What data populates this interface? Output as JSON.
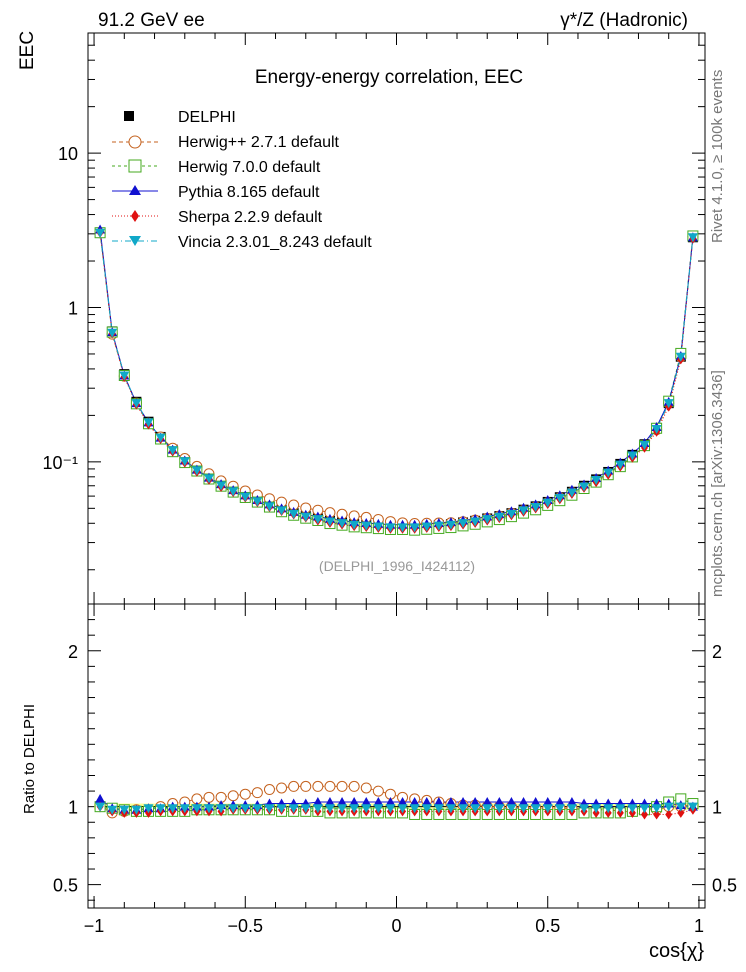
{
  "header": {
    "left": "91.2 GeV ee",
    "right": "γ*/Z (Hadronic)"
  },
  "side_text": {
    "rivet": "Rivet 4.1.0, ≥ 100k events",
    "mcplots": "mcplots.cern.ch [arXiv:1306.3436]"
  },
  "analysis_id": "(DELPHI_1996_I424112)",
  "chart_data": {
    "type": "line",
    "title": "Energy-energy correlation, EEC",
    "xlabel": "cos{χ}",
    "ylabel": "EEC",
    "ratio_ylabel": "Ratio to DELPHI",
    "xlim": [
      -1.02,
      1.02
    ],
    "ylim": [
      0.012,
      60
    ],
    "ratio_ylim": [
      0.35,
      2.3
    ],
    "yscale": "log",
    "x_ticks": [
      -1,
      -0.5,
      0,
      0.5,
      1
    ],
    "x_tick_labels": [
      "−1",
      "−0.5",
      "0",
      "0.5",
      "1"
    ],
    "y_ticks": [
      0.1,
      1,
      10
    ],
    "y_tick_labels": [
      "10⁻¹",
      "1",
      "10"
    ],
    "ratio_ticks": [
      0.5,
      1,
      2
    ],
    "ratio_tick_labels": [
      "0.5",
      "1",
      "2"
    ],
    "x": [
      -0.98,
      -0.94,
      -0.9,
      -0.86,
      -0.82,
      -0.78,
      -0.74,
      -0.7,
      -0.66,
      -0.62,
      -0.58,
      -0.54,
      -0.5,
      -0.46,
      -0.42,
      -0.38,
      -0.34,
      -0.3,
      -0.26,
      -0.22,
      -0.18,
      -0.14,
      -0.1,
      -0.06,
      -0.02,
      0.02,
      0.06,
      0.1,
      0.14,
      0.18,
      0.22,
      0.26,
      0.3,
      0.34,
      0.38,
      0.42,
      0.46,
      0.5,
      0.54,
      0.58,
      0.62,
      0.66,
      0.7,
      0.74,
      0.78,
      0.82,
      0.86,
      0.9,
      0.94,
      0.98
    ],
    "data": {
      "name": "DELPHI",
      "values": [
        3.05,
        0.7,
        0.37,
        0.245,
        0.182,
        0.145,
        0.12,
        0.102,
        0.089,
        0.079,
        0.071,
        0.065,
        0.06,
        0.056,
        0.052,
        0.049,
        0.0465,
        0.0445,
        0.043,
        0.0415,
        0.0405,
        0.0395,
        0.039,
        0.0385,
        0.038,
        0.038,
        0.038,
        0.0385,
        0.039,
        0.0395,
        0.0405,
        0.0415,
        0.043,
        0.0445,
        0.0465,
        0.049,
        0.0515,
        0.055,
        0.059,
        0.064,
        0.07,
        0.077,
        0.086,
        0.097,
        0.111,
        0.13,
        0.165,
        0.24,
        0.48,
        2.85
      ]
    },
    "series": [
      {
        "name": "Herwig++ 2.7.1 default",
        "color": "#c4621f",
        "marker": "circle-open",
        "dash": "4,3",
        "ratio": [
          1.0,
          0.96,
          0.97,
          0.98,
          0.98,
          1.0,
          1.02,
          1.03,
          1.05,
          1.06,
          1.06,
          1.07,
          1.08,
          1.09,
          1.11,
          1.12,
          1.13,
          1.13,
          1.13,
          1.13,
          1.13,
          1.13,
          1.12,
          1.1,
          1.08,
          1.06,
          1.05,
          1.04,
          1.03,
          1.02,
          1.01,
          1.01,
          1.0,
          1.0,
          1.0,
          0.99,
          0.99,
          0.99,
          0.99,
          0.99,
          0.98,
          0.98,
          0.98,
          0.97,
          0.97,
          0.98,
          0.98,
          1.0,
          1.0,
          1.01
        ]
      },
      {
        "name": "Herwig 7.0.0 default",
        "color": "#44aa1f",
        "marker": "square-open",
        "dash": "3,3",
        "ratio": [
          1.0,
          0.99,
          0.98,
          0.97,
          0.97,
          0.97,
          0.97,
          0.97,
          0.98,
          0.98,
          0.98,
          0.98,
          0.98,
          0.98,
          0.98,
          0.97,
          0.97,
          0.97,
          0.97,
          0.96,
          0.96,
          0.96,
          0.96,
          0.96,
          0.96,
          0.96,
          0.95,
          0.95,
          0.95,
          0.95,
          0.95,
          0.95,
          0.95,
          0.95,
          0.95,
          0.95,
          0.95,
          0.95,
          0.95,
          0.95,
          0.96,
          0.96,
          0.96,
          0.96,
          0.97,
          0.98,
          1.0,
          1.03,
          1.05,
          1.02
        ]
      },
      {
        "name": "Pythia 8.165 default",
        "color": "#1010d0",
        "marker": "triangle-up",
        "dash": "",
        "ratio": [
          1.05,
          0.99,
          0.98,
          0.98,
          0.99,
          0.99,
          1.0,
          1.0,
          1.0,
          1.0,
          1.01,
          1.01,
          1.01,
          1.01,
          1.02,
          1.02,
          1.02,
          1.02,
          1.03,
          1.03,
          1.03,
          1.03,
          1.03,
          1.03,
          1.03,
          1.03,
          1.03,
          1.03,
          1.03,
          1.03,
          1.03,
          1.03,
          1.03,
          1.03,
          1.03,
          1.03,
          1.03,
          1.03,
          1.03,
          1.03,
          1.02,
          1.02,
          1.02,
          1.02,
          1.02,
          1.02,
          1.02,
          1.02,
          1.01,
          1.0
        ]
      },
      {
        "name": "Sherpa 2.2.9 default",
        "color": "#e01010",
        "marker": "diamond",
        "dash": "1,2",
        "ratio": [
          1.0,
          0.97,
          0.96,
          0.96,
          0.96,
          0.97,
          0.97,
          0.97,
          0.97,
          0.97,
          0.97,
          0.98,
          0.98,
          0.98,
          0.98,
          0.98,
          0.98,
          0.98,
          0.97,
          0.97,
          0.97,
          0.97,
          0.97,
          0.97,
          0.97,
          0.97,
          0.97,
          0.97,
          0.97,
          0.97,
          0.97,
          0.97,
          0.97,
          0.97,
          0.97,
          0.97,
          0.97,
          0.97,
          0.97,
          0.97,
          0.97,
          0.96,
          0.96,
          0.96,
          0.96,
          0.95,
          0.95,
          0.95,
          0.96,
          0.98
        ]
      },
      {
        "name": "Vincia 2.3.01_8.243 default",
        "color": "#10a8c8",
        "marker": "triangle-down",
        "dash": "6,3,1,3",
        "ratio": [
          1.0,
          0.98,
          0.98,
          0.98,
          0.99,
          0.99,
          0.99,
          0.99,
          0.99,
          0.99,
          0.99,
          0.99,
          0.99,
          0.99,
          0.99,
          0.99,
          0.99,
          0.99,
          0.99,
          0.99,
          0.99,
          0.99,
          0.99,
          0.99,
          0.99,
          0.99,
          0.99,
          0.99,
          0.99,
          0.99,
          0.99,
          0.99,
          0.99,
          0.99,
          0.99,
          0.99,
          0.99,
          0.99,
          0.99,
          0.99,
          0.99,
          0.99,
          0.99,
          0.99,
          0.99,
          0.99,
          0.99,
          1.0,
          1.0,
          1.0
        ]
      }
    ],
    "data_series_legend": "DELPHI",
    "grid": false,
    "legend": "top-left"
  }
}
